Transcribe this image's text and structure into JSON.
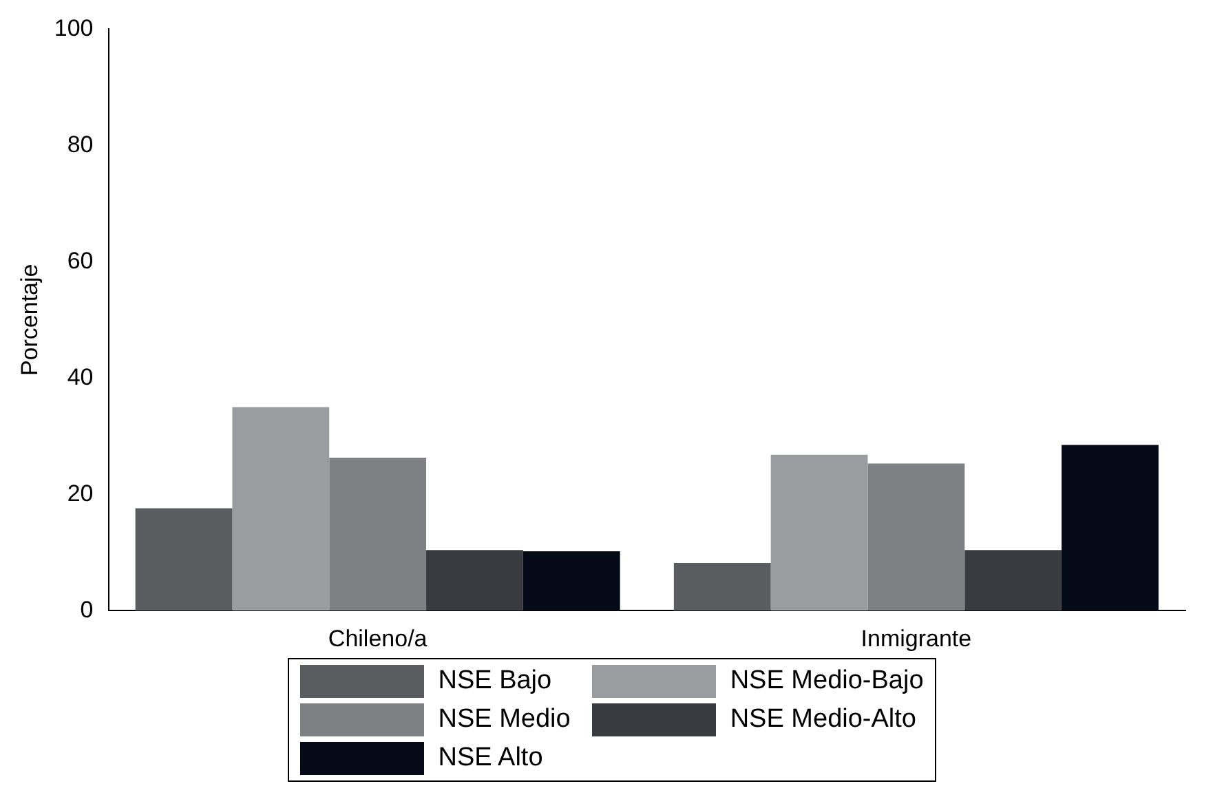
{
  "chart_data": {
    "type": "bar",
    "ylabel": "Porcentaje",
    "categories": [
      "Chileno/a",
      "Inmigrante"
    ],
    "series": [
      {
        "name": "NSE Bajo",
        "color": "#5a5c60",
        "values": [
          17.6,
          8.2
        ]
      },
      {
        "name": "NSE Medio-Bajo",
        "color": "#9a9c9f",
        "values": [
          35.0,
          26.8
        ]
      },
      {
        "name": "NSE Medio",
        "color": "#7f8083",
        "values": [
          26.3,
          25.3
        ]
      },
      {
        "name": "NSE Medio-Alto",
        "color": "#3a3b40",
        "values": [
          10.4,
          10.4
        ]
      },
      {
        "name": "NSE Alto",
        "color": "#050a18",
        "values": [
          10.2,
          28.5
        ]
      }
    ],
    "ylim": [
      0,
      100
    ],
    "yticks": [
      0,
      20,
      40,
      60,
      80,
      100
    ],
    "grid": false,
    "legend": "bottom"
  }
}
